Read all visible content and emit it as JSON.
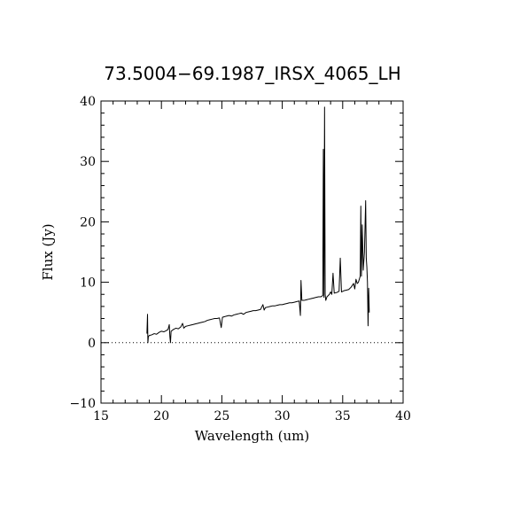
{
  "chart_data": {
    "type": "line",
    "title": "73.5004−69.1987_IRSX_4065_LH",
    "xlabel": "Wavelength (um)",
    "ylabel": "Flux (Jy)",
    "xlim": [
      15,
      40
    ],
    "ylim": [
      -10,
      40
    ],
    "x_ticks": [
      "15",
      "20",
      "25",
      "30",
      "35",
      "40"
    ],
    "y_ticks": [
      "−10",
      "0",
      "10",
      "20",
      "30",
      "40"
    ],
    "zero_line": {
      "y": 0,
      "style": "dotted"
    },
    "grid": false,
    "series": [
      {
        "values": [
          [
            18.8,
            1.5
          ],
          [
            18.85,
            4.7
          ],
          [
            18.88,
            0.0
          ],
          [
            18.92,
            1.0
          ],
          [
            19.0,
            1.2
          ],
          [
            19.2,
            1.3
          ],
          [
            19.4,
            1.5
          ],
          [
            19.6,
            1.4
          ],
          [
            19.8,
            1.7
          ],
          [
            20.0,
            1.9
          ],
          [
            20.2,
            1.8
          ],
          [
            20.4,
            2.0
          ],
          [
            20.55,
            2.2
          ],
          [
            20.65,
            3.0
          ],
          [
            20.7,
            1.0
          ],
          [
            20.75,
            0.0
          ],
          [
            20.8,
            1.9
          ],
          [
            21.0,
            2.2
          ],
          [
            21.2,
            2.4
          ],
          [
            21.4,
            2.3
          ],
          [
            21.6,
            2.6
          ],
          [
            21.75,
            3.2
          ],
          [
            21.85,
            2.4
          ],
          [
            22.0,
            2.7
          ],
          [
            22.2,
            2.8
          ],
          [
            22.4,
            2.9
          ],
          [
            22.6,
            3.0
          ],
          [
            22.8,
            3.1
          ],
          [
            23.0,
            3.2
          ],
          [
            23.2,
            3.3
          ],
          [
            23.4,
            3.4
          ],
          [
            23.6,
            3.5
          ],
          [
            23.8,
            3.7
          ],
          [
            24.0,
            3.8
          ],
          [
            24.2,
            3.9
          ],
          [
            24.4,
            4.0
          ],
          [
            24.6,
            4.0
          ],
          [
            24.8,
            4.1
          ],
          [
            24.95,
            2.5
          ],
          [
            25.05,
            4.2
          ],
          [
            25.2,
            4.3
          ],
          [
            25.4,
            4.4
          ],
          [
            25.6,
            4.5
          ],
          [
            25.8,
            4.4
          ],
          [
            26.0,
            4.6
          ],
          [
            26.2,
            4.7
          ],
          [
            26.4,
            4.8
          ],
          [
            26.6,
            4.9
          ],
          [
            26.8,
            4.7
          ],
          [
            27.0,
            5.0
          ],
          [
            27.2,
            5.1
          ],
          [
            27.4,
            5.2
          ],
          [
            27.6,
            5.3
          ],
          [
            27.8,
            5.3
          ],
          [
            28.0,
            5.4
          ],
          [
            28.2,
            5.5
          ],
          [
            28.4,
            6.3
          ],
          [
            28.5,
            5.4
          ],
          [
            28.6,
            5.8
          ],
          [
            28.8,
            5.9
          ],
          [
            29.0,
            6.0
          ],
          [
            29.2,
            6.1
          ],
          [
            29.4,
            6.1
          ],
          [
            29.6,
            6.2
          ],
          [
            29.8,
            6.3
          ],
          [
            30.0,
            6.3
          ],
          [
            30.2,
            6.4
          ],
          [
            30.4,
            6.5
          ],
          [
            30.6,
            6.6
          ],
          [
            30.8,
            6.6
          ],
          [
            31.0,
            6.7
          ],
          [
            31.2,
            6.8
          ],
          [
            31.4,
            6.9
          ],
          [
            31.5,
            4.5
          ],
          [
            31.55,
            10.3
          ],
          [
            31.62,
            7.0
          ],
          [
            31.8,
            7.0
          ],
          [
            32.0,
            7.1
          ],
          [
            32.2,
            7.2
          ],
          [
            32.4,
            7.3
          ],
          [
            32.6,
            7.4
          ],
          [
            32.8,
            7.5
          ],
          [
            33.0,
            7.6
          ],
          [
            33.2,
            7.6
          ],
          [
            33.35,
            7.8
          ],
          [
            33.4,
            32.0
          ],
          [
            33.45,
            7.5
          ],
          [
            33.5,
            39.0
          ],
          [
            33.55,
            8.0
          ],
          [
            33.6,
            7.0
          ],
          [
            33.7,
            7.6
          ],
          [
            33.9,
            8.0
          ],
          [
            34.0,
            8.4
          ],
          [
            34.1,
            8.0
          ],
          [
            34.2,
            11.5
          ],
          [
            34.3,
            8.2
          ],
          [
            34.5,
            8.3
          ],
          [
            34.7,
            8.5
          ],
          [
            34.8,
            14.0
          ],
          [
            34.9,
            8.4
          ],
          [
            35.1,
            8.6
          ],
          [
            35.3,
            8.7
          ],
          [
            35.5,
            8.8
          ],
          [
            35.7,
            9.2
          ],
          [
            35.9,
            9.8
          ],
          [
            36.0,
            8.9
          ],
          [
            36.1,
            10.5
          ],
          [
            36.2,
            9.8
          ],
          [
            36.3,
            10.0
          ],
          [
            36.45,
            11.0
          ],
          [
            36.5,
            22.6
          ],
          [
            36.55,
            11.0
          ],
          [
            36.62,
            19.5
          ],
          [
            36.7,
            12.0
          ],
          [
            36.8,
            15.0
          ],
          [
            36.9,
            23.5
          ],
          [
            36.95,
            14.0
          ],
          [
            37.0,
            12.5
          ],
          [
            37.05,
            10.0
          ],
          [
            37.1,
            2.8
          ],
          [
            37.15,
            9.0
          ],
          [
            37.2,
            5.0
          ]
        ]
      }
    ]
  }
}
